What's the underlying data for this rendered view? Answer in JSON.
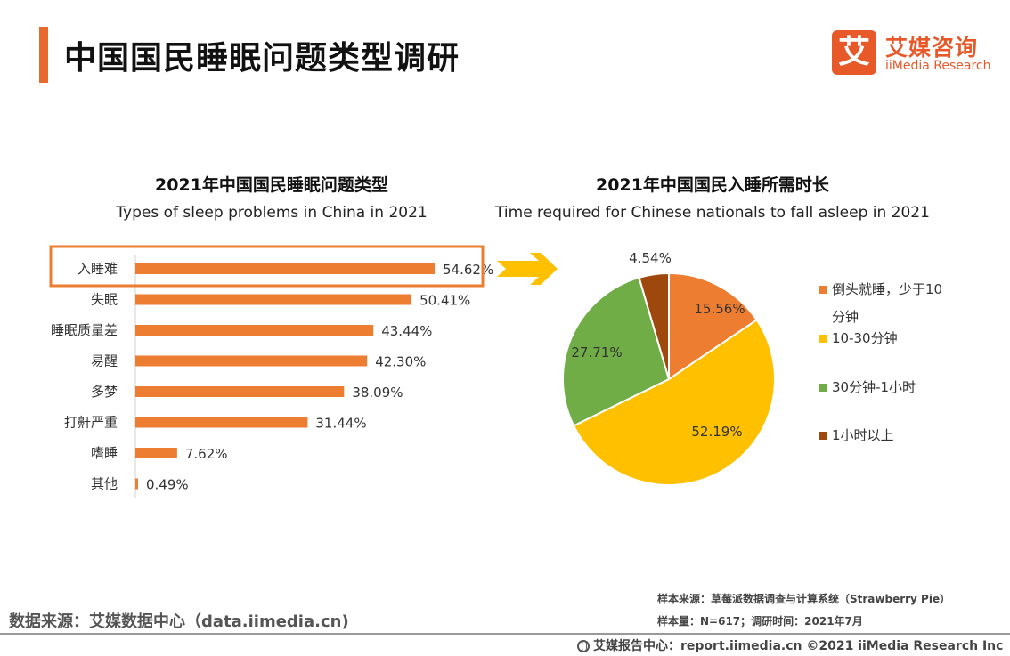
{
  "page": {
    "title": "中国国民睡眠问题类型调研"
  },
  "logo": {
    "mark": "艾",
    "cn": "艾媒咨询",
    "en": "iiMedia Research"
  },
  "colors": {
    "accent": "#e8692d",
    "bar": "#ed7d31",
    "highlight_box": "#ed7d31",
    "arrow": "#ffc000",
    "slice_under10": "#ed7d31",
    "slice_10_30": "#ffc000",
    "slice_30_60": "#70ad47",
    "slice_over1h": "#9e480e"
  },
  "chart_data": [
    {
      "type": "bar",
      "orientation": "horizontal",
      "title": "2021年中国国民睡眠问题类型",
      "subtitle": "Types of sleep problems in China in 2021",
      "categories": [
        "入睡难",
        "失眠",
        "睡眠质量差",
        "易醒",
        "多梦",
        "打鼾严重",
        "嗜睡",
        "其他"
      ],
      "values": [
        54.62,
        50.41,
        43.44,
        42.3,
        38.09,
        31.44,
        7.62,
        0.49
      ],
      "value_labels": [
        "54.62%",
        "50.41%",
        "43.44%",
        "42.30%",
        "38.09%",
        "31.44%",
        "7.62%",
        "0.49%"
      ],
      "unit": "%",
      "highlighted_category": "入睡难",
      "grid": false
    },
    {
      "type": "pie",
      "title": "2021年中国国民入睡所需时长",
      "subtitle": "Time required for Chinese nationals to fall asleep in 2021",
      "categories": [
        "倒头就睡，少于10分钟",
        "10-30分钟",
        "30分钟-1小时",
        "1小时以上"
      ],
      "values": [
        15.56,
        52.19,
        27.71,
        4.54
      ],
      "value_labels": [
        "15.56%",
        "52.19%",
        "27.71%",
        "4.54%"
      ],
      "legend_lines": [
        [
          "倒头就睡，少于10",
          "分钟"
        ],
        [
          "10-30分钟"
        ],
        [
          "30分钟-1小时"
        ],
        [
          "1小时以上"
        ]
      ],
      "legend_placement": "right"
    }
  ],
  "footer": {
    "source": "数据来源：艾媒数据中心（data.iimedia.cn)",
    "sample_source": "样本来源：草莓派数据调查与计算系统（Strawberry Pie）",
    "sample_size": "样本量：N=617；调研时间：2021年7月",
    "copyright": "艾媒报告中心：report.iimedia.cn  ©2021  iiMedia Research  Inc"
  }
}
